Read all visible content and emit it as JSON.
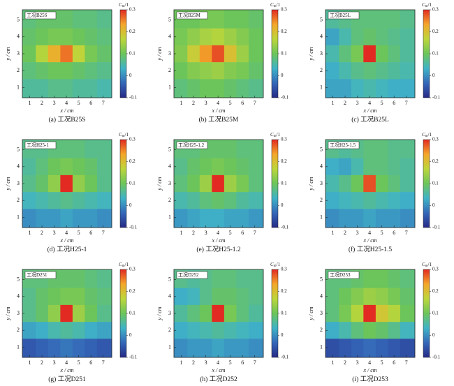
{
  "chart_data": [
    {
      "type": "heatmap",
      "label": "工况B25S",
      "caption": "(a) 工况B25S",
      "x_label": "x / cm",
      "y_label": "y / cm",
      "x": [
        1,
        2,
        3,
        4,
        5,
        6,
        7
      ],
      "y": [
        5,
        4,
        3,
        2,
        1
      ],
      "xlim": [
        0.4,
        7.7
      ],
      "ylim": [
        0.4,
        5.6
      ],
      "xticks": [
        1,
        2,
        3,
        4,
        5,
        6,
        7
      ],
      "yticks": [
        1,
        2,
        3,
        4,
        5
      ],
      "zlim": [
        -0.1,
        0.3
      ],
      "zticks": [
        0.3,
        0.2,
        0.1,
        0,
        -0.1
      ],
      "colorbar_label_main": "C",
      "colorbar_label_sub": "m",
      "colorbar_label_tail": "/1",
      "colormap": [
        "#262a86",
        "#3467b8",
        "#3fb3c7",
        "#6cc55a",
        "#bcd63b",
        "#f4a62a",
        "#e22a23"
      ],
      "z": [
        [
          0.08,
          0.09,
          0.09,
          0.09,
          0.08,
          0.08,
          0.07
        ],
        [
          0.09,
          0.1,
          0.11,
          0.11,
          0.1,
          0.09,
          0.08
        ],
        [
          0.1,
          0.16,
          0.22,
          0.26,
          0.17,
          0.11,
          0.09
        ],
        [
          0.08,
          0.09,
          0.1,
          0.1,
          0.09,
          0.08,
          0.07
        ],
        [
          0.06,
          0.06,
          0.07,
          0.07,
          0.06,
          0.06,
          0.05
        ]
      ]
    },
    {
      "type": "heatmap",
      "label": "工况B25M",
      "caption": "(b) 工况B25M",
      "x_label": "x / cm",
      "y_label": "y / cm",
      "x": [
        1,
        2,
        3,
        4,
        5,
        6,
        7
      ],
      "y": [
        5,
        4,
        3,
        2,
        1
      ],
      "xlim": [
        0.4,
        7.7
      ],
      "ylim": [
        0.4,
        5.6
      ],
      "xticks": [
        1,
        2,
        3,
        4,
        5,
        6,
        7
      ],
      "yticks": [
        1,
        2,
        3,
        4,
        5
      ],
      "zlim": [
        -0.1,
        0.3
      ],
      "zticks": [
        0.3,
        0.2,
        0.1,
        0,
        -0.1
      ],
      "colorbar_label_main": "C",
      "colorbar_label_sub": "m",
      "colorbar_label_tail": "/1",
      "colormap": [
        "#262a86",
        "#3467b8",
        "#3fb3c7",
        "#6cc55a",
        "#bcd63b",
        "#f4a62a",
        "#e22a23"
      ],
      "z": [
        [
          0.1,
          0.1,
          0.11,
          0.11,
          0.1,
          0.1,
          0.09
        ],
        [
          0.11,
          0.13,
          0.15,
          0.16,
          0.14,
          0.12,
          0.1
        ],
        [
          0.12,
          0.18,
          0.24,
          0.28,
          0.2,
          0.14,
          0.1
        ],
        [
          0.1,
          0.12,
          0.13,
          0.14,
          0.12,
          0.11,
          0.09
        ],
        [
          0.08,
          0.09,
          0.1,
          0.1,
          0.09,
          0.08,
          0.07
        ]
      ]
    },
    {
      "type": "heatmap",
      "label": "工况B25L",
      "caption": "(c) 工况B25L",
      "x_label": "x / cm",
      "y_label": "y / cm",
      "x": [
        1,
        2,
        3,
        4,
        5,
        6,
        7
      ],
      "y": [
        5,
        4,
        3,
        2,
        1
      ],
      "xlim": [
        0.4,
        7.7
      ],
      "ylim": [
        0.4,
        5.6
      ],
      "xticks": [
        1,
        2,
        3,
        4,
        5,
        6,
        7
      ],
      "yticks": [
        1,
        2,
        3,
        4,
        5
      ],
      "zlim": [
        -0.1,
        0.3
      ],
      "zticks": [
        0.3,
        0.2,
        0.1,
        0,
        -0.1
      ],
      "colorbar_label_main": "C",
      "colorbar_label_sub": "m",
      "colorbar_label_tail": "/1",
      "colormap": [
        "#262a86",
        "#3467b8",
        "#3fb3c7",
        "#6cc55a",
        "#bcd63b",
        "#f4a62a",
        "#e22a23"
      ],
      "z": [
        [
          0.06,
          0.07,
          0.08,
          0.08,
          0.08,
          0.08,
          0.07
        ],
        [
          0.02,
          0.05,
          0.08,
          0.09,
          0.08,
          0.07,
          0.06
        ],
        [
          0.05,
          0.08,
          0.11,
          0.3,
          0.1,
          0.08,
          0.06
        ],
        [
          0.03,
          0.05,
          0.07,
          0.08,
          0.07,
          0.06,
          0.05
        ],
        [
          0.02,
          0.02,
          0.04,
          0.05,
          0.04,
          0.03,
          0.03
        ]
      ]
    },
    {
      "type": "heatmap",
      "label": "工况H25-1",
      "caption": "(d) 工况H25-1",
      "x_label": "x / cm",
      "y_label": "y / cm",
      "x": [
        1,
        2,
        3,
        4,
        5,
        6,
        7
      ],
      "y": [
        5,
        4,
        3,
        2,
        1
      ],
      "xlim": [
        0.4,
        7.7
      ],
      "ylim": [
        0.4,
        5.6
      ],
      "xticks": [
        1,
        2,
        3,
        4,
        5,
        6,
        7
      ],
      "yticks": [
        1,
        2,
        3,
        4,
        5
      ],
      "zlim": [
        -0.1,
        0.3
      ],
      "zticks": [
        0.3,
        0.2,
        0.1,
        0,
        -0.1
      ],
      "colorbar_label_main": "C",
      "colorbar_label_sub": "m",
      "colorbar_label_tail": "/1",
      "colormap": [
        "#262a86",
        "#3467b8",
        "#3fb3c7",
        "#6cc55a",
        "#bcd63b",
        "#f4a62a",
        "#e22a23"
      ],
      "z": [
        [
          0.07,
          0.07,
          0.08,
          0.08,
          0.08,
          0.07,
          0.07
        ],
        [
          0.06,
          0.08,
          0.1,
          0.11,
          0.1,
          0.09,
          0.07
        ],
        [
          0.07,
          0.09,
          0.13,
          0.3,
          0.13,
          0.1,
          0.07
        ],
        [
          0.04,
          0.05,
          0.06,
          0.07,
          0.06,
          0.05,
          0.04
        ],
        [
          0,
          0.01,
          0.01,
          0.02,
          0.01,
          0.01,
          0
        ]
      ]
    },
    {
      "type": "heatmap",
      "label": "工况H25-1.2",
      "caption": "(e) 工况H25-1.2",
      "x_label": "x / cm",
      "y_label": "y / cm",
      "x": [
        1,
        2,
        3,
        4,
        5,
        6,
        7
      ],
      "y": [
        5,
        4,
        3,
        2,
        1
      ],
      "xlim": [
        0.4,
        7.7
      ],
      "ylim": [
        0.4,
        5.6
      ],
      "xticks": [
        1,
        2,
        3,
        4,
        5,
        6,
        7
      ],
      "yticks": [
        1,
        2,
        3,
        4,
        5
      ],
      "zlim": [
        -0.1,
        0.3
      ],
      "zticks": [
        0.3,
        0.2,
        0.1,
        0,
        -0.1
      ],
      "colorbar_label_main": "C",
      "colorbar_label_sub": "m",
      "colorbar_label_tail": "/1",
      "colormap": [
        "#262a86",
        "#3467b8",
        "#3fb3c7",
        "#6cc55a",
        "#bcd63b",
        "#f4a62a",
        "#e22a23"
      ],
      "z": [
        [
          0.08,
          0.08,
          0.09,
          0.09,
          0.09,
          0.08,
          0.08
        ],
        [
          0.07,
          0.09,
          0.1,
          0.11,
          0.1,
          0.09,
          0.08
        ],
        [
          0.08,
          0.1,
          0.14,
          0.3,
          0.14,
          0.11,
          0.08
        ],
        [
          0.05,
          0.06,
          0.08,
          0.09,
          0.08,
          0.06,
          0.05
        ],
        [
          0.01,
          0.02,
          0.03,
          0.03,
          0.02,
          0.02,
          0.01
        ]
      ]
    },
    {
      "type": "heatmap",
      "label": "工况H25-1.5",
      "caption": "(f) 工况H25-1.5",
      "x_label": "x / cm",
      "y_label": "y / cm",
      "x": [
        1,
        2,
        3,
        4,
        5,
        6,
        7
      ],
      "y": [
        5,
        4,
        3,
        2,
        1
      ],
      "xlim": [
        0.4,
        7.7
      ],
      "ylim": [
        0.4,
        5.6
      ],
      "xticks": [
        1,
        2,
        3,
        4,
        5,
        6,
        7
      ],
      "yticks": [
        1,
        2,
        3,
        4,
        5
      ],
      "zlim": [
        -0.1,
        0.3
      ],
      "zticks": [
        0.3,
        0.2,
        0.1,
        0,
        -0.1
      ],
      "colorbar_label_main": "C",
      "colorbar_label_sub": "m",
      "colorbar_label_tail": "/1",
      "colormap": [
        "#262a86",
        "#3467b8",
        "#3fb3c7",
        "#6cc55a",
        "#bcd63b",
        "#f4a62a",
        "#e22a23"
      ],
      "z": [
        [
          0.07,
          0.06,
          0.07,
          0.08,
          0.08,
          0.07,
          0.07
        ],
        [
          0.03,
          0.02,
          0.05,
          0.08,
          0.08,
          0.07,
          0.06
        ],
        [
          0.05,
          0.07,
          0.1,
          0.28,
          0.1,
          0.08,
          0.06
        ],
        [
          0.03,
          0.04,
          0.05,
          0.06,
          0.05,
          0.04,
          0.03
        ],
        [
          0,
          0.01,
          0.01,
          0.02,
          0.01,
          0.01,
          0
        ]
      ]
    },
    {
      "type": "heatmap",
      "label": "工况D251",
      "caption": "(g) 工况D251",
      "x_label": "x / cm",
      "y_label": "y / cm",
      "x": [
        1,
        2,
        3,
        4,
        5,
        6,
        7
      ],
      "y": [
        5,
        4,
        3,
        2,
        1
      ],
      "xlim": [
        0.4,
        7.7
      ],
      "ylim": [
        0.4,
        5.6
      ],
      "xticks": [
        1,
        2,
        3,
        4,
        5,
        6,
        7
      ],
      "yticks": [
        1,
        2,
        3,
        4,
        5
      ],
      "zlim": [
        -0.1,
        0.3
      ],
      "zticks": [
        0.3,
        0.2,
        0.1,
        0,
        -0.1
      ],
      "colorbar_label_main": "C",
      "colorbar_label_sub": "m",
      "colorbar_label_tail": "/1",
      "colormap": [
        "#262a86",
        "#3467b8",
        "#3fb3c7",
        "#6cc55a",
        "#bcd63b",
        "#f4a62a",
        "#e22a23"
      ],
      "z": [
        [
          0.08,
          0.08,
          0.09,
          0.09,
          0.09,
          0.08,
          0.07
        ],
        [
          0.07,
          0.09,
          0.1,
          0.11,
          0.11,
          0.09,
          0.08
        ],
        [
          0.07,
          0.09,
          0.13,
          0.3,
          0.14,
          0.1,
          0.07
        ],
        [
          0.02,
          0.03,
          0.05,
          0.06,
          0.05,
          0.03,
          0.02
        ],
        [
          -0.05,
          -0.04,
          -0.03,
          -0.02,
          -0.03,
          -0.04,
          -0.05
        ]
      ]
    },
    {
      "type": "heatmap",
      "label": "工况D252",
      "caption": "(h) 工况D252",
      "x_label": "x / cm",
      "y_label": "y / cm",
      "x": [
        1,
        2,
        3,
        4,
        5,
        6,
        7
      ],
      "y": [
        5,
        4,
        3,
        2,
        1
      ],
      "xlim": [
        0.4,
        7.7
      ],
      "ylim": [
        0.4,
        5.6
      ],
      "xticks": [
        1,
        2,
        3,
        4,
        5,
        6,
        7
      ],
      "yticks": [
        1,
        2,
        3,
        4,
        5
      ],
      "zlim": [
        -0.1,
        0.3
      ],
      "zticks": [
        0.3,
        0.2,
        0.1,
        0,
        -0.1
      ],
      "colorbar_label_main": "C",
      "colorbar_label_sub": "m",
      "colorbar_label_tail": "/1",
      "colormap": [
        "#262a86",
        "#3467b8",
        "#3fb3c7",
        "#6cc55a",
        "#bcd63b",
        "#f4a62a",
        "#e22a23"
      ],
      "z": [
        [
          0.07,
          0.06,
          0.07,
          0.08,
          0.08,
          0.07,
          0.07
        ],
        [
          0.03,
          0.04,
          0.07,
          0.09,
          0.09,
          0.08,
          0.07
        ],
        [
          0.06,
          0.08,
          0.1,
          0.3,
          0.11,
          0.08,
          0.06
        ],
        [
          0.03,
          0.04,
          0.05,
          0.06,
          0.05,
          0.04,
          0.03
        ],
        [
          0,
          0.01,
          0.01,
          0.02,
          0.01,
          0.01,
          0
        ]
      ]
    },
    {
      "type": "heatmap",
      "label": "工况D253",
      "caption": "(i) 工况D253",
      "x_label": "x / cm",
      "y_label": "y / cm",
      "x": [
        1,
        2,
        3,
        4,
        5,
        6,
        7
      ],
      "y": [
        5,
        4,
        3,
        2,
        1
      ],
      "xlim": [
        0.4,
        7.7
      ],
      "ylim": [
        0.4,
        5.6
      ],
      "xticks": [
        1,
        2,
        3,
        4,
        5,
        6,
        7
      ],
      "yticks": [
        1,
        2,
        3,
        4,
        5
      ],
      "zlim": [
        -0.1,
        0.3
      ],
      "zticks": [
        0.3,
        0.2,
        0.1,
        0,
        -0.1
      ],
      "colorbar_label_main": "C",
      "colorbar_label_sub": "m",
      "colorbar_label_tail": "/1",
      "colormap": [
        "#262a86",
        "#3467b8",
        "#3fb3c7",
        "#6cc55a",
        "#bcd63b",
        "#f4a62a",
        "#e22a23"
      ],
      "z": [
        [
          0.08,
          0.08,
          0.09,
          0.1,
          0.1,
          0.09,
          0.08
        ],
        [
          0.08,
          0.1,
          0.12,
          0.14,
          0.13,
          0.11,
          0.09
        ],
        [
          0.08,
          0.11,
          0.16,
          0.3,
          0.19,
          0.16,
          0.1
        ],
        [
          0.03,
          0.05,
          0.08,
          0.1,
          0.09,
          0.07,
          0.04
        ],
        [
          -0.06,
          -0.05,
          -0.04,
          -0.03,
          -0.04,
          -0.05,
          -0.06
        ]
      ]
    }
  ]
}
